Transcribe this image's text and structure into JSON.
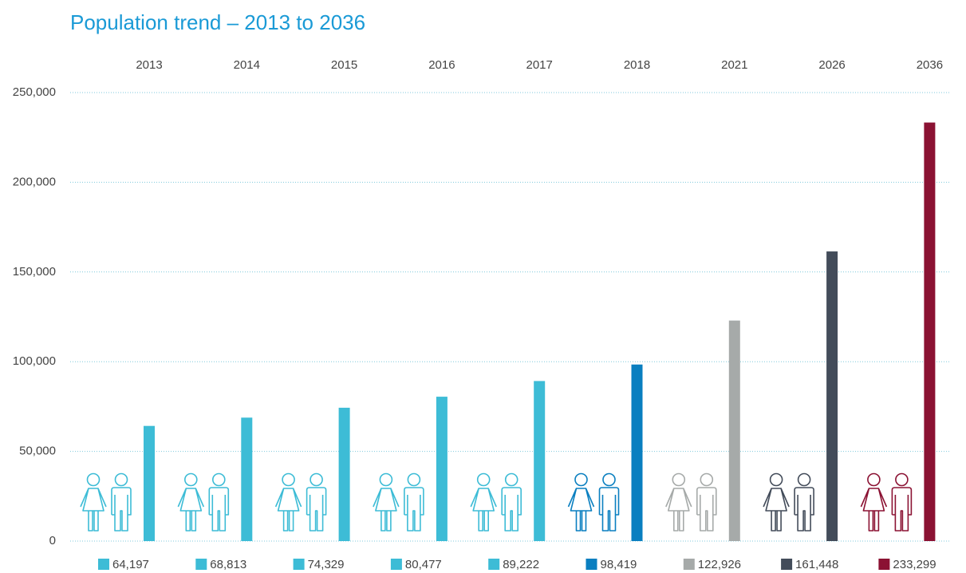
{
  "chart_data": {
    "type": "bar",
    "title": "Population trend – 2013 to 2036",
    "categories": [
      "2013",
      "2014",
      "2015",
      "2016",
      "2017",
      "2018",
      "2021",
      "2026",
      "2036"
    ],
    "values": [
      64197,
      68813,
      74329,
      80477,
      89222,
      98419,
      122926,
      161448,
      233299
    ],
    "value_labels": [
      "64,197",
      "68,813",
      "74,329",
      "80,477",
      "89,222",
      "98,419",
      "122,926",
      "161,448",
      "233,299"
    ],
    "colors": [
      "#3dbcd6",
      "#3dbcd6",
      "#3dbcd6",
      "#3dbcd6",
      "#3dbcd6",
      "#0a7fc0",
      "#a6aaa9",
      "#434c5a",
      "#8b1233"
    ],
    "ylim": [
      0,
      250000
    ],
    "yticks": [
      0,
      {
        "value": 50000,
        "label": "50,000"
      },
      {
        "value": 100000,
        "label": "100,000"
      },
      {
        "value": 150000,
        "label": "150,000"
      },
      {
        "value": 200000,
        "label": "200,000"
      },
      {
        "value": 250000,
        "label": "250,000"
      }
    ],
    "grid": true
  }
}
